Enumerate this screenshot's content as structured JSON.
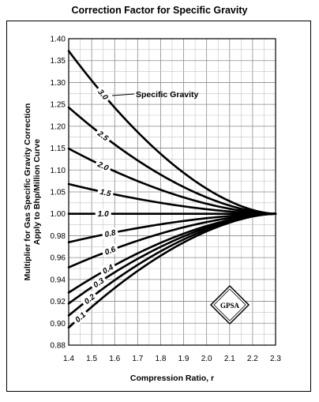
{
  "chart_data": {
    "type": "line",
    "title": "Correction Factor for Specific Gravity",
    "xlabel": "Compression Ratio, r",
    "ylabel": "Multiplier for Gas Specific Gravity Correction",
    "ylabel2": "Apply to Bhp/Million Curve",
    "xlim": [
      1.4,
      2.3
    ],
    "ylim": [
      0.88,
      1.4
    ],
    "grid": true,
    "x_ticks": [
      1.4,
      1.5,
      1.6,
      1.7,
      1.8,
      1.9,
      2.0,
      2.1,
      2.2,
      2.3
    ],
    "x_tick_labels": [
      "1.4",
      "1.5",
      "1.6",
      "1.7",
      "1.8",
      "1.9",
      "2.0",
      "2.1",
      "2.2",
      "2.3"
    ],
    "y_ticks": [
      0.88,
      0.9,
      0.92,
      0.94,
      0.96,
      0.98,
      1.0,
      1.05,
      1.1,
      1.15,
      1.2,
      1.25,
      1.3,
      1.35,
      1.4
    ],
    "y_tick_labels": [
      "0.88",
      "0.90",
      "0.92",
      "0.94",
      "0.96",
      "0.98",
      "1.00",
      "1.05",
      "1.10",
      "1.15",
      "1.20",
      "1.25",
      "1.30",
      "1.35",
      "1.40"
    ],
    "convergence": {
      "x": 2.3,
      "y": 1.0
    },
    "series": [
      {
        "name": "3.0",
        "y_at_1_4": 1.372,
        "label_x": 1.55
      },
      {
        "name": "2.5",
        "y_at_1_4": 1.243,
        "label_x": 1.55
      },
      {
        "name": "2.0",
        "y_at_1_4": 1.149,
        "label_x": 1.55
      },
      {
        "name": "1.5",
        "y_at_1_4": 1.068,
        "label_x": 1.56
      },
      {
        "name": "1.0",
        "y_at_1_4": 1.0,
        "label_x": 1.55
      },
      {
        "name": "0.8",
        "y_at_1_4": 0.974,
        "label_x": 1.58
      },
      {
        "name": "0.6",
        "y_at_1_4": 0.951,
        "label_x": 1.58
      },
      {
        "name": "0.4",
        "y_at_1_4": 0.928,
        "label_x": 1.57
      },
      {
        "name": "0.3",
        "y_at_1_4": 0.918,
        "label_x": 1.53
      },
      {
        "name": "0.2",
        "y_at_1_4": 0.907,
        "label_x": 1.49
      },
      {
        "name": "0.1",
        "y_at_1_4": 0.896,
        "label_x": 1.45
      }
    ],
    "annotation": "Specific Gravity",
    "logo": "GPSA"
  }
}
